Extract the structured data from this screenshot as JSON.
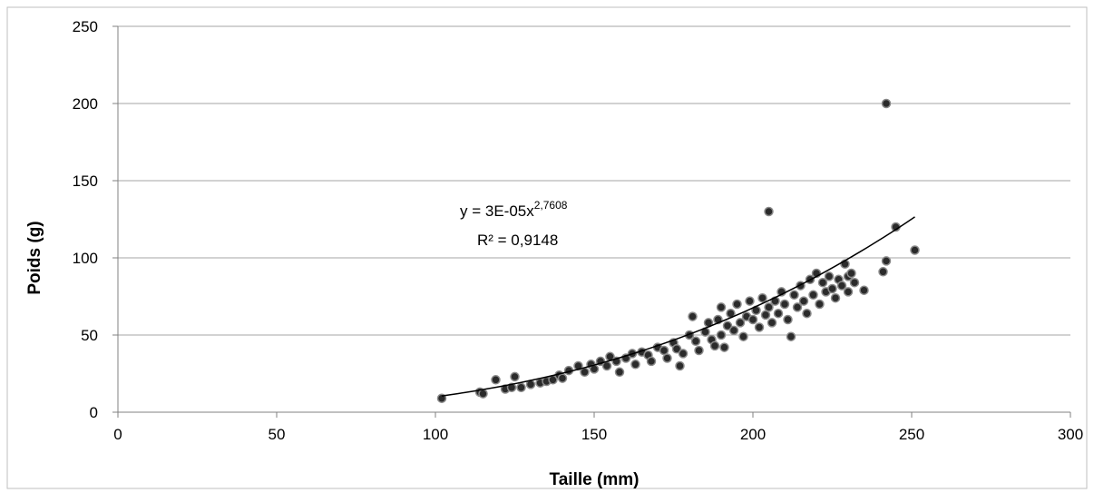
{
  "chart_data": {
    "type": "scatter",
    "xlabel": "Taille (mm)",
    "ylabel": "Poids (g)",
    "xlim": [
      0,
      300
    ],
    "ylim": [
      0,
      250
    ],
    "x_ticks": [
      0,
      50,
      100,
      150,
      200,
      250,
      300
    ],
    "y_ticks": [
      0,
      50,
      100,
      150,
      200,
      250
    ],
    "grid": "horizontal",
    "colors": {
      "points": "#2b2b2b",
      "point_edge": "#8a8a8a",
      "trendline": "#000000",
      "grid": "#a6a6a6"
    },
    "trendline": {
      "type": "power",
      "a": 3e-05,
      "b": 2.7608,
      "x_range": [
        102,
        251
      ],
      "equation_base": "y = 3E-05x",
      "equation_exponent": "2,7608",
      "r2_label": "R² = 0,9148"
    },
    "points": [
      [
        102,
        9
      ],
      [
        114,
        13
      ],
      [
        115,
        12
      ],
      [
        119,
        21
      ],
      [
        122,
        15
      ],
      [
        124,
        16
      ],
      [
        125,
        23
      ],
      [
        127,
        16
      ],
      [
        130,
        18
      ],
      [
        133,
        19
      ],
      [
        135,
        20
      ],
      [
        137,
        21
      ],
      [
        139,
        24
      ],
      [
        140,
        22
      ],
      [
        142,
        27
      ],
      [
        145,
        30
      ],
      [
        147,
        26
      ],
      [
        149,
        31
      ],
      [
        150,
        28
      ],
      [
        152,
        33
      ],
      [
        154,
        30
      ],
      [
        155,
        36
      ],
      [
        157,
        33
      ],
      [
        158,
        26
      ],
      [
        160,
        35
      ],
      [
        162,
        38
      ],
      [
        163,
        31
      ],
      [
        165,
        39
      ],
      [
        167,
        37
      ],
      [
        168,
        33
      ],
      [
        170,
        42
      ],
      [
        172,
        40
      ],
      [
        173,
        35
      ],
      [
        175,
        45
      ],
      [
        176,
        41
      ],
      [
        177,
        30
      ],
      [
        178,
        38
      ],
      [
        180,
        50
      ],
      [
        181,
        62
      ],
      [
        182,
        46
      ],
      [
        183,
        40
      ],
      [
        185,
        52
      ],
      [
        186,
        58
      ],
      [
        187,
        47
      ],
      [
        188,
        43
      ],
      [
        189,
        60
      ],
      [
        190,
        68
      ],
      [
        190,
        50
      ],
      [
        191,
        42
      ],
      [
        192,
        56
      ],
      [
        193,
        64
      ],
      [
        194,
        53
      ],
      [
        195,
        70
      ],
      [
        196,
        58
      ],
      [
        197,
        49
      ],
      [
        198,
        62
      ],
      [
        199,
        72
      ],
      [
        200,
        60
      ],
      [
        201,
        66
      ],
      [
        202,
        55
      ],
      [
        203,
        74
      ],
      [
        204,
        63
      ],
      [
        205,
        130
      ],
      [
        205,
        68
      ],
      [
        206,
        58
      ],
      [
        207,
        72
      ],
      [
        208,
        64
      ],
      [
        209,
        78
      ],
      [
        210,
        70
      ],
      [
        211,
        60
      ],
      [
        212,
        49
      ],
      [
        213,
        76
      ],
      [
        214,
        68
      ],
      [
        215,
        82
      ],
      [
        216,
        72
      ],
      [
        217,
        64
      ],
      [
        218,
        86
      ],
      [
        219,
        76
      ],
      [
        220,
        90
      ],
      [
        221,
        70
      ],
      [
        222,
        84
      ],
      [
        223,
        78
      ],
      [
        224,
        88
      ],
      [
        225,
        80
      ],
      [
        226,
        74
      ],
      [
        227,
        86
      ],
      [
        228,
        82
      ],
      [
        229,
        96
      ],
      [
        230,
        88
      ],
      [
        230,
        78
      ],
      [
        231,
        90
      ],
      [
        232,
        84
      ],
      [
        235,
        79
      ],
      [
        241,
        91
      ],
      [
        242,
        98
      ],
      [
        242,
        200
      ],
      [
        245,
        120
      ],
      [
        251,
        105
      ]
    ]
  }
}
